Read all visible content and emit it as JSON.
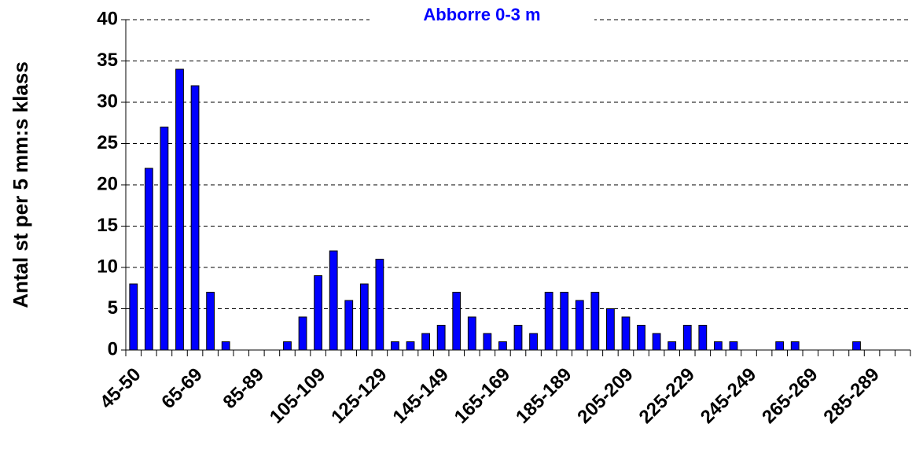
{
  "chart_data": {
    "type": "bar",
    "title": "Abborre 0-3 m",
    "y_label": "Antal st per 5 mm:s klass",
    "categories": [
      "45-50",
      null,
      null,
      null,
      "65-69",
      null,
      null,
      null,
      "85-89",
      null,
      null,
      null,
      "105-109",
      null,
      null,
      null,
      "125-129",
      null,
      null,
      null,
      "145-149",
      null,
      null,
      null,
      "165-169",
      null,
      null,
      null,
      "185-189",
      null,
      null,
      null,
      "205-209",
      null,
      null,
      null,
      "225-229",
      null,
      null,
      null,
      "245-249",
      null,
      null,
      null,
      "265-269",
      null,
      null,
      null,
      "285-289",
      null,
      null
    ],
    "values": [
      8,
      22,
      27,
      34,
      32,
      7,
      1,
      0,
      0,
      0,
      1,
      4,
      9,
      12,
      6,
      8,
      11,
      1,
      1,
      2,
      3,
      7,
      4,
      2,
      1,
      3,
      2,
      7,
      7,
      6,
      7,
      5,
      4,
      3,
      2,
      1,
      3,
      3,
      1,
      1,
      0,
      0,
      1,
      1,
      0,
      0,
      0,
      1,
      0,
      0,
      0
    ],
    "color": "#0000ff",
    "title_color": "#0000ff",
    "ylim": [
      0,
      40
    ],
    "yticks": [
      0,
      5,
      10,
      15,
      20,
      25,
      30,
      35,
      40
    ],
    "grid": true
  }
}
